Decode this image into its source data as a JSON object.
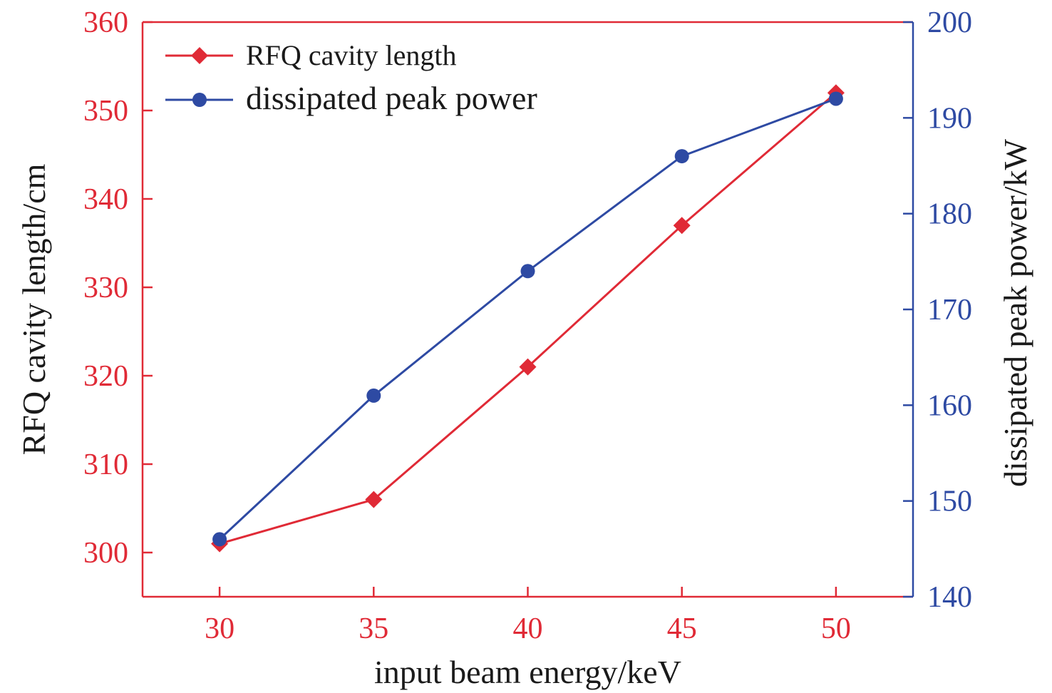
{
  "chart_data": {
    "type": "line",
    "x": [
      30,
      35,
      40,
      45,
      50
    ],
    "xlabel": "input beam energy/keV",
    "xlim": [
      27.5,
      52.5
    ],
    "x_ticks": [
      "30",
      "35",
      "40",
      "45",
      "50"
    ],
    "ylabel_left": "RFQ cavity length/cm",
    "ylim_left": [
      295,
      360
    ],
    "y_ticks_left": [
      "300",
      "310",
      "320",
      "330",
      "340",
      "350",
      "360"
    ],
    "ylabel_right": "dissipated peak power/kW",
    "ylim_right": [
      140,
      200
    ],
    "y_ticks_right": [
      "140",
      "150",
      "160",
      "170",
      "180",
      "190",
      "200"
    ],
    "legend_position": "top-left",
    "grid": false,
    "series": [
      {
        "name": "RFQ cavity length",
        "axis": "left",
        "marker": "diamond",
        "color": "#e02a36",
        "values": [
          301,
          306,
          321,
          337,
          352
        ]
      },
      {
        "name": "dissipated peak power",
        "axis": "right",
        "marker": "circle",
        "color": "#2e4aa3",
        "values": [
          146,
          161,
          174,
          186,
          192
        ]
      }
    ]
  }
}
